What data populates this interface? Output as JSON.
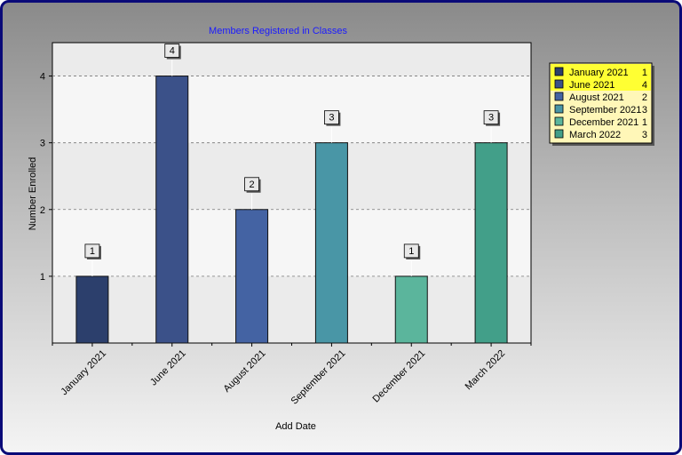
{
  "chart_data": {
    "type": "bar",
    "title": "Members Registered in Classes",
    "xlabel": "Add Date",
    "ylabel": "Number Enrolled",
    "categories": [
      "January 2021",
      "June 2021",
      "August 2021",
      "September 2021",
      "December 2021",
      "March 2022"
    ],
    "values": [
      1,
      4,
      2,
      3,
      1,
      3
    ],
    "colors": [
      "#2c3f6c",
      "#3b5189",
      "#4463a3",
      "#4996a6",
      "#5bb59c",
      "#429f89"
    ],
    "ylim": [
      0,
      4.5
    ],
    "yticks": [
      1,
      2,
      3,
      4
    ],
    "grid": true,
    "legend_position": "top-right"
  }
}
